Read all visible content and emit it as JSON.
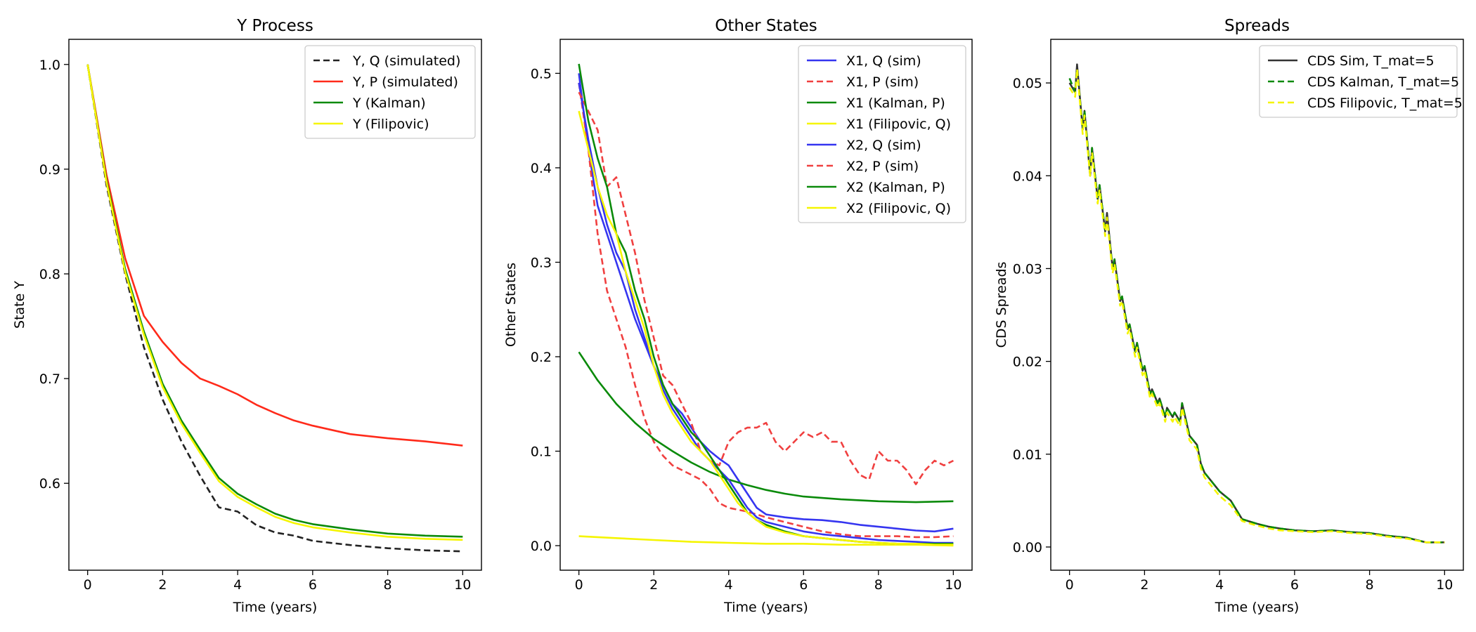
{
  "chart_data": [
    {
      "type": "line",
      "title": "Y Process",
      "xlabel": "Time (years)",
      "ylabel": "State Y",
      "xlim": [
        -0.5,
        10.5
      ],
      "ylim": [
        0.517,
        1.024
      ],
      "xticks": [
        0,
        2,
        4,
        6,
        8,
        10
      ],
      "yticks": [
        0.6,
        0.7,
        0.8,
        0.9,
        1.0
      ],
      "ytick_decimals": 1,
      "legend_position": "upper right",
      "series": [
        {
          "name": "Y, Q (simulated)",
          "color": "#222222",
          "dashed": true,
          "x": [
            0,
            0.5,
            1,
            1.5,
            2,
            2.5,
            3,
            3.5,
            4,
            4.5,
            5,
            5.5,
            6,
            7,
            8,
            9,
            10
          ],
          "y": [
            1.0,
            0.885,
            0.8,
            0.73,
            0.68,
            0.64,
            0.607,
            0.577,
            0.573,
            0.56,
            0.553,
            0.55,
            0.545,
            0.541,
            0.538,
            0.536,
            0.535
          ]
        },
        {
          "name": "Y, P (simulated)",
          "color": "#ff2a1a",
          "dashed": false,
          "x": [
            0,
            0.5,
            1,
            1.5,
            2,
            2.5,
            3,
            3.5,
            4,
            4.5,
            5,
            5.5,
            6,
            7,
            8,
            9,
            10
          ],
          "y": [
            1.0,
            0.895,
            0.815,
            0.76,
            0.735,
            0.715,
            0.7,
            0.693,
            0.685,
            0.675,
            0.667,
            0.66,
            0.655,
            0.647,
            0.643,
            0.64,
            0.636
          ]
        },
        {
          "name": "Y (Kalman)",
          "color": "#0a8a0a",
          "dashed": false,
          "x": [
            0,
            0.5,
            1,
            1.5,
            2,
            2.5,
            3,
            3.5,
            4,
            4.5,
            5,
            5.5,
            6,
            7,
            8,
            9,
            10
          ],
          "y": [
            1.0,
            0.89,
            0.805,
            0.745,
            0.695,
            0.66,
            0.632,
            0.605,
            0.59,
            0.58,
            0.571,
            0.565,
            0.561,
            0.556,
            0.552,
            0.55,
            0.549
          ]
        },
        {
          "name": "Y (Filipovic)",
          "color": "#f5f500",
          "dashed": false,
          "x": [
            0,
            0.5,
            1,
            1.5,
            2,
            2.5,
            3,
            3.5,
            4,
            4.5,
            5,
            5.5,
            6,
            7,
            8,
            9,
            10
          ],
          "y": [
            1.0,
            0.888,
            0.802,
            0.742,
            0.692,
            0.657,
            0.629,
            0.602,
            0.587,
            0.577,
            0.568,
            0.562,
            0.558,
            0.553,
            0.549,
            0.547,
            0.546
          ]
        }
      ]
    },
    {
      "type": "line",
      "title": "Other States",
      "xlabel": "Time (years)",
      "ylabel": "Other States",
      "xlim": [
        -0.5,
        10.5
      ],
      "ylim": [
        -0.026,
        0.536
      ],
      "xticks": [
        0,
        2,
        4,
        6,
        8,
        10
      ],
      "yticks": [
        0.0,
        0.1,
        0.2,
        0.3,
        0.4,
        0.5
      ],
      "ytick_decimals": 1,
      "legend_position": "upper right",
      "series": [
        {
          "name": "X1, Q (sim)",
          "color": "#3535f0",
          "dashed": false,
          "x": [
            0,
            0.25,
            0.5,
            0.75,
            1,
            1.25,
            1.5,
            1.75,
            2,
            2.25,
            2.5,
            2.75,
            3,
            3.25,
            3.5,
            3.75,
            4,
            4.25,
            4.5,
            4.75,
            5,
            5.5,
            6,
            6.5,
            7,
            7.5,
            8,
            8.5,
            9,
            9.5,
            10
          ],
          "y": [
            0.5,
            0.42,
            0.36,
            0.33,
            0.3,
            0.27,
            0.24,
            0.215,
            0.19,
            0.17,
            0.15,
            0.14,
            0.125,
            0.11,
            0.1,
            0.092,
            0.085,
            0.07,
            0.055,
            0.04,
            0.033,
            0.03,
            0.028,
            0.027,
            0.025,
            0.022,
            0.02,
            0.018,
            0.016,
            0.015,
            0.018
          ]
        },
        {
          "name": "X1, P (sim)",
          "color": "#f04040",
          "dashed": true,
          "x": [
            0,
            0.25,
            0.5,
            0.75,
            1,
            1.25,
            1.5,
            1.75,
            2,
            2.25,
            2.5,
            2.75,
            3,
            3.25,
            3.5,
            3.75,
            4,
            4.25,
            4.5,
            4.75,
            5,
            5.5,
            6,
            6.5,
            7,
            7.5,
            8,
            8.5,
            9,
            9.5,
            10
          ],
          "y": [
            0.49,
            0.42,
            0.33,
            0.27,
            0.24,
            0.21,
            0.17,
            0.135,
            0.11,
            0.095,
            0.085,
            0.08,
            0.075,
            0.07,
            0.06,
            0.045,
            0.04,
            0.038,
            0.036,
            0.033,
            0.03,
            0.025,
            0.02,
            0.015,
            0.012,
            0.01,
            0.01,
            0.01,
            0.009,
            0.009,
            0.01
          ]
        },
        {
          "name": "X1 (Kalman, P)",
          "color": "#0a8a0a",
          "dashed": false,
          "x": [
            0,
            0.5,
            1,
            1.5,
            2,
            2.5,
            3,
            3.5,
            4,
            4.5,
            5,
            5.5,
            6,
            7,
            8,
            9,
            10
          ],
          "y": [
            0.205,
            0.175,
            0.15,
            0.13,
            0.113,
            0.1,
            0.088,
            0.078,
            0.07,
            0.064,
            0.059,
            0.055,
            0.052,
            0.049,
            0.047,
            0.046,
            0.047
          ]
        },
        {
          "name": "X1 (Filipovic, Q)",
          "color": "#f5f500",
          "dashed": false,
          "x": [
            0,
            1,
            2,
            3,
            4,
            5,
            6,
            7,
            8,
            9,
            10
          ],
          "y": [
            0.01,
            0.008,
            0.006,
            0.004,
            0.003,
            0.002,
            0.002,
            0.001,
            0.001,
            0.001,
            0.0
          ]
        },
        {
          "name": "X2, Q (sim)",
          "color": "#3535f0",
          "dashed": false,
          "x": [
            0,
            0.25,
            0.5,
            0.75,
            1,
            1.25,
            1.5,
            1.75,
            2,
            2.25,
            2.5,
            2.75,
            3,
            3.25,
            3.5,
            3.75,
            4,
            4.25,
            4.5,
            4.75,
            5,
            5.5,
            6,
            6.5,
            7,
            7.5,
            8,
            8.5,
            9,
            9.5,
            10
          ],
          "y": [
            0.49,
            0.43,
            0.38,
            0.34,
            0.31,
            0.29,
            0.25,
            0.22,
            0.19,
            0.165,
            0.145,
            0.13,
            0.115,
            0.1,
            0.09,
            0.08,
            0.07,
            0.055,
            0.04,
            0.03,
            0.025,
            0.02,
            0.015,
            0.012,
            0.01,
            0.008,
            0.006,
            0.005,
            0.004,
            0.003,
            0.003
          ]
        },
        {
          "name": "X2, P (sim)",
          "color": "#f04040",
          "dashed": true,
          "x": [
            0,
            0.25,
            0.5,
            0.75,
            1,
            1.25,
            1.5,
            1.75,
            2,
            2.25,
            2.5,
            2.75,
            3,
            3.25,
            3.5,
            3.75,
            4,
            4.25,
            4.5,
            4.75,
            5,
            5.25,
            5.5,
            5.75,
            6,
            6.25,
            6.5,
            6.75,
            7,
            7.25,
            7.5,
            7.75,
            8,
            8.25,
            8.5,
            8.75,
            9,
            9.25,
            9.5,
            9.75,
            10
          ],
          "y": [
            0.48,
            0.46,
            0.44,
            0.38,
            0.39,
            0.35,
            0.31,
            0.26,
            0.22,
            0.18,
            0.17,
            0.15,
            0.13,
            0.1,
            0.09,
            0.085,
            0.11,
            0.12,
            0.125,
            0.125,
            0.13,
            0.11,
            0.1,
            0.11,
            0.12,
            0.115,
            0.12,
            0.11,
            0.11,
            0.09,
            0.075,
            0.07,
            0.1,
            0.09,
            0.09,
            0.08,
            0.065,
            0.08,
            0.09,
            0.085,
            0.09
          ]
        },
        {
          "name": "X2 (Kalman, P)",
          "color": "#0a8a0a",
          "dashed": false,
          "x": [
            0,
            0.25,
            0.5,
            0.75,
            1,
            1.25,
            1.5,
            1.75,
            2,
            2.25,
            2.5,
            2.75,
            3,
            3.25,
            3.5,
            3.75,
            4,
            4.25,
            4.5,
            4.75,
            5,
            5.5,
            6,
            6.5,
            7,
            7.5,
            8,
            8.5,
            9,
            9.5,
            10
          ],
          "y": [
            0.51,
            0.45,
            0.41,
            0.38,
            0.33,
            0.31,
            0.27,
            0.24,
            0.2,
            0.17,
            0.15,
            0.135,
            0.12,
            0.11,
            0.095,
            0.08,
            0.065,
            0.05,
            0.035,
            0.027,
            0.022,
            0.015,
            0.01,
            0.008,
            0.006,
            0.004,
            0.003,
            0.002,
            0.002,
            0.002,
            0.002
          ]
        },
        {
          "name": "X2 (Filipovic, Q)",
          "color": "#f5f500",
          "dashed": false,
          "x": [
            0,
            0.25,
            0.5,
            0.75,
            1,
            1.25,
            1.5,
            1.75,
            2,
            2.25,
            2.5,
            2.75,
            3,
            3.25,
            3.5,
            3.75,
            4,
            4.25,
            4.5,
            4.75,
            5,
            5.5,
            6,
            6.5,
            7,
            7.5,
            8,
            8.5,
            9,
            9.5,
            10
          ],
          "y": [
            0.46,
            0.42,
            0.38,
            0.35,
            0.33,
            0.29,
            0.26,
            0.23,
            0.19,
            0.16,
            0.14,
            0.125,
            0.11,
            0.1,
            0.09,
            0.075,
            0.06,
            0.045,
            0.035,
            0.027,
            0.02,
            0.014,
            0.01,
            0.008,
            0.006,
            0.004,
            0.003,
            0.002,
            0.002,
            0.001,
            0.001
          ]
        }
      ]
    },
    {
      "type": "line",
      "title": "Spreads",
      "xlabel": "Time (years)",
      "ylabel": "CDS Spreads",
      "xlim": [
        -0.5,
        10.5
      ],
      "ylim": [
        -0.0025,
        0.0547
      ],
      "xticks": [
        0,
        2,
        4,
        6,
        8,
        10
      ],
      "yticks": [
        0.0,
        0.01,
        0.02,
        0.03,
        0.04,
        0.05
      ],
      "ytick_decimals": 2,
      "legend_position": "upper right",
      "series": [
        {
          "name": "CDS Sim, T_mat=5",
          "color": "#333333",
          "dashed": false,
          "x": [
            0,
            0.15,
            0.2,
            0.35,
            0.4,
            0.55,
            0.6,
            0.75,
            0.8,
            0.95,
            1.0,
            1.15,
            1.2,
            1.35,
            1.4,
            1.55,
            1.6,
            1.75,
            1.8,
            1.95,
            2.0,
            2.15,
            2.2,
            2.35,
            2.4,
            2.55,
            2.6,
            2.75,
            2.8,
            2.95,
            3.0,
            3.2,
            3.4,
            3.5,
            3.6,
            3.8,
            4.0,
            4.3,
            4.6,
            5.0,
            5.3,
            5.6,
            6.0,
            6.5,
            7.0,
            7.5,
            8.0,
            8.5,
            9.0,
            9.5,
            10.0
          ],
          "y": [
            0.05,
            0.049,
            0.052,
            0.045,
            0.047,
            0.04,
            0.043,
            0.0375,
            0.039,
            0.034,
            0.036,
            0.03,
            0.031,
            0.0265,
            0.027,
            0.0235,
            0.024,
            0.021,
            0.022,
            0.019,
            0.0195,
            0.0165,
            0.017,
            0.0155,
            0.016,
            0.014,
            0.015,
            0.014,
            0.0145,
            0.0135,
            0.0155,
            0.012,
            0.011,
            0.009,
            0.008,
            0.007,
            0.006,
            0.005,
            0.003,
            0.0025,
            0.0022,
            0.002,
            0.0018,
            0.0017,
            0.0018,
            0.0016,
            0.0015,
            0.0012,
            0.001,
            0.0005,
            0.0005
          ]
        },
        {
          "name": "CDS Kalman, T_mat=5",
          "color": "#0a8a0a",
          "dashed": true,
          "x": [
            0,
            0.15,
            0.2,
            0.35,
            0.4,
            0.55,
            0.6,
            0.75,
            0.8,
            0.95,
            1.0,
            1.15,
            1.2,
            1.35,
            1.4,
            1.55,
            1.6,
            1.75,
            1.8,
            1.95,
            2.0,
            2.15,
            2.2,
            2.35,
            2.4,
            2.55,
            2.6,
            2.75,
            2.8,
            2.95,
            3.0,
            3.2,
            3.4,
            3.5,
            3.6,
            3.8,
            4.0,
            4.3,
            4.6,
            5.0,
            5.3,
            5.6,
            6.0,
            6.5,
            7.0,
            7.5,
            8.0,
            8.5,
            9.0,
            9.5,
            10.0
          ],
          "y": [
            0.0505,
            0.049,
            0.0515,
            0.045,
            0.047,
            0.0405,
            0.043,
            0.0375,
            0.039,
            0.034,
            0.0355,
            0.03,
            0.031,
            0.0265,
            0.027,
            0.0235,
            0.024,
            0.021,
            0.022,
            0.019,
            0.0195,
            0.0165,
            0.017,
            0.0155,
            0.016,
            0.014,
            0.015,
            0.014,
            0.0145,
            0.0135,
            0.0155,
            0.012,
            0.011,
            0.009,
            0.008,
            0.007,
            0.006,
            0.005,
            0.003,
            0.0025,
            0.0022,
            0.002,
            0.0018,
            0.0017,
            0.0018,
            0.0016,
            0.0015,
            0.0012,
            0.001,
            0.0005,
            0.0005
          ]
        },
        {
          "name": "CDS Filipovic, T_mat=5",
          "color": "#f5f500",
          "dashed": true,
          "x": [
            0,
            0.15,
            0.2,
            0.35,
            0.4,
            0.55,
            0.6,
            0.75,
            0.8,
            0.95,
            1.0,
            1.15,
            1.2,
            1.35,
            1.4,
            1.55,
            1.6,
            1.75,
            1.8,
            1.95,
            2.0,
            2.15,
            2.2,
            2.35,
            2.4,
            2.55,
            2.6,
            2.75,
            2.8,
            2.95,
            3.0,
            3.2,
            3.4,
            3.5,
            3.6,
            3.8,
            4.0,
            4.3,
            4.6,
            5.0,
            5.3,
            5.6,
            6.0,
            6.5,
            7.0,
            7.5,
            8.0,
            8.5,
            9.0,
            9.5,
            10.0
          ],
          "y": [
            0.0495,
            0.0485,
            0.0515,
            0.0445,
            0.0465,
            0.04,
            0.0425,
            0.037,
            0.0385,
            0.0335,
            0.0355,
            0.0295,
            0.0305,
            0.026,
            0.0265,
            0.023,
            0.0235,
            0.0205,
            0.0215,
            0.0185,
            0.019,
            0.016,
            0.0165,
            0.015,
            0.0155,
            0.0135,
            0.0145,
            0.0135,
            0.014,
            0.013,
            0.015,
            0.0115,
            0.0105,
            0.0085,
            0.0075,
            0.0065,
            0.0055,
            0.0045,
            0.0028,
            0.0023,
            0.002,
            0.0018,
            0.0017,
            0.0016,
            0.0017,
            0.0015,
            0.0014,
            0.0011,
            0.0009,
            0.0005,
            0.0005
          ]
        }
      ]
    }
  ]
}
